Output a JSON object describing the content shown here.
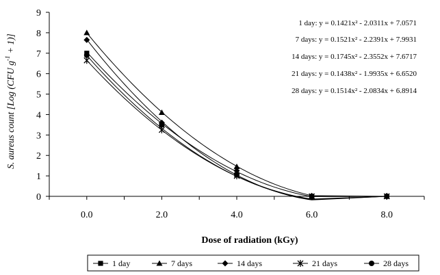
{
  "chart_data": {
    "type": "line",
    "title": "",
    "xlabel": "Dose of radiation (kGy)",
    "ylabel": {
      "parts": [
        "S. aureus count ",
        "[Log (CFU g",
        "-1",
        " + 1)]"
      ]
    },
    "x_ticks": [
      "0.0",
      "2.0",
      "4.0",
      "6.0",
      "8.0"
    ],
    "y_ticks": [
      "0",
      "1",
      "2",
      "3",
      "4",
      "5",
      "6",
      "7",
      "8",
      "9"
    ],
    "xlim": [
      -1,
      9
    ],
    "ylim": [
      0,
      9
    ],
    "grid": false,
    "legend_position": "bottom",
    "series": [
      {
        "name": "1 day",
        "marker": "square",
        "x": [
          0,
          2,
          4,
          6,
          8
        ],
        "y": [
          7.0,
          3.5,
          1.05,
          0,
          0
        ],
        "fit": [
          0.1421,
          -2.0311,
          7.0571
        ],
        "equation": "1 day: y = 0.1421x² - 2.0311x + 7.0571"
      },
      {
        "name": "7 days",
        "marker": "triangle",
        "x": [
          0,
          2,
          4,
          6,
          8
        ],
        "y": [
          8.0,
          4.1,
          1.45,
          0,
          0
        ],
        "fit": [
          0.1521,
          -2.2391,
          7.9931
        ],
        "equation": "7 days: y = 0.1521x² - 2.2391x + 7.9931"
      },
      {
        "name": "14 days",
        "marker": "diamond",
        "x": [
          0,
          2,
          4,
          6,
          8
        ],
        "y": [
          7.65,
          3.6,
          1.25,
          0,
          0
        ],
        "fit": [
          0.1745,
          -2.3552,
          7.6717
        ],
        "equation": "14 days: y = 0.1745x² - 2.3552x + 7.6717"
      },
      {
        "name": "21 days",
        "marker": "star",
        "x": [
          0,
          2,
          4,
          6,
          8
        ],
        "y": [
          6.65,
          3.25,
          1.0,
          0,
          0
        ],
        "fit": [
          0.1438,
          -1.9935,
          6.652
        ],
        "equation": "21 days: y = 0.1438x² - 1.9935x + 6.6520"
      },
      {
        "name": "28 days",
        "marker": "circle",
        "x": [
          0,
          2,
          4,
          6,
          8
        ],
        "y": [
          6.9,
          3.5,
          1.05,
          0,
          0
        ],
        "fit": [
          0.1514,
          -2.0834,
          6.8914
        ],
        "equation": "28 days: y = 0.1514x² - 2.0834x + 6.8914"
      }
    ]
  }
}
